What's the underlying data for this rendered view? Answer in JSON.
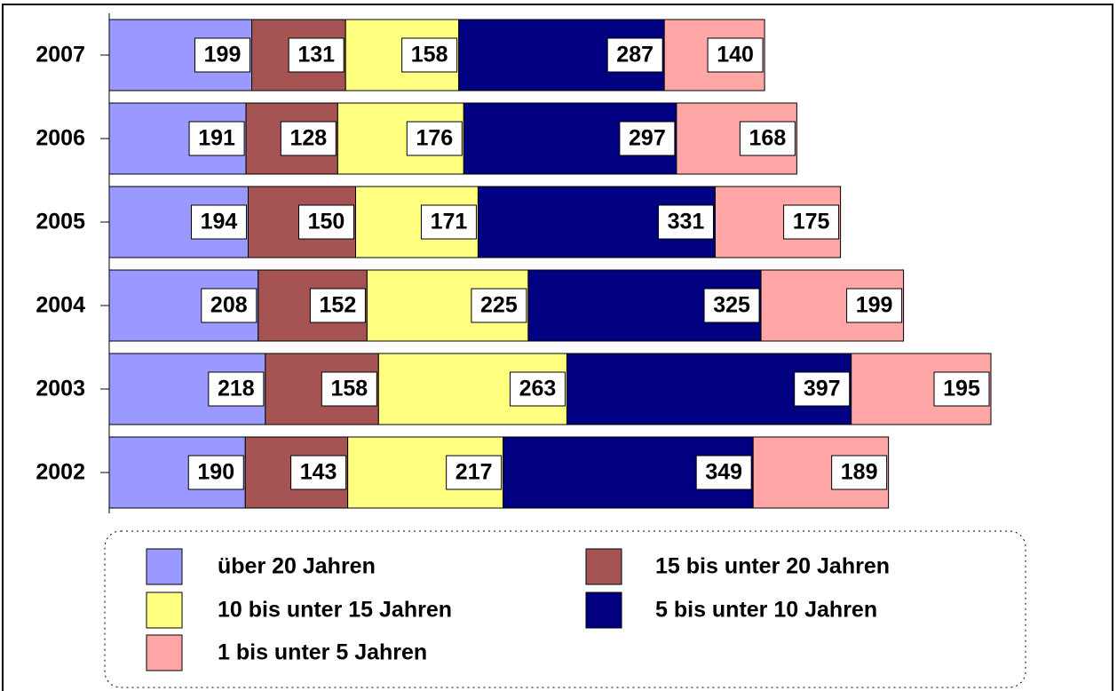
{
  "chart_data": {
    "type": "stacked-bar-horizontal",
    "categories": [
      "2007",
      "2006",
      "2005",
      "2004",
      "2003",
      "2002"
    ],
    "series": [
      {
        "name": "über 20 Jahren",
        "color": "#9999ff",
        "values": [
          199,
          191,
          194,
          208,
          218,
          190
        ]
      },
      {
        "name": "15 bis unter 20 Jahren",
        "color": "#a65353",
        "values": [
          131,
          128,
          150,
          152,
          158,
          143
        ]
      },
      {
        "name": "10 bis unter 15 Jahren",
        "color": "#ffff80",
        "values": [
          158,
          176,
          171,
          225,
          263,
          217
        ]
      },
      {
        "name": "5 bis unter 10 Jahren",
        "color": "#000080",
        "values": [
          287,
          297,
          331,
          325,
          397,
          349
        ]
      },
      {
        "name": "1 bis unter 5 Jahren",
        "color": "#ffa6a6",
        "values": [
          140,
          168,
          175,
          199,
          195,
          189
        ]
      }
    ]
  }
}
